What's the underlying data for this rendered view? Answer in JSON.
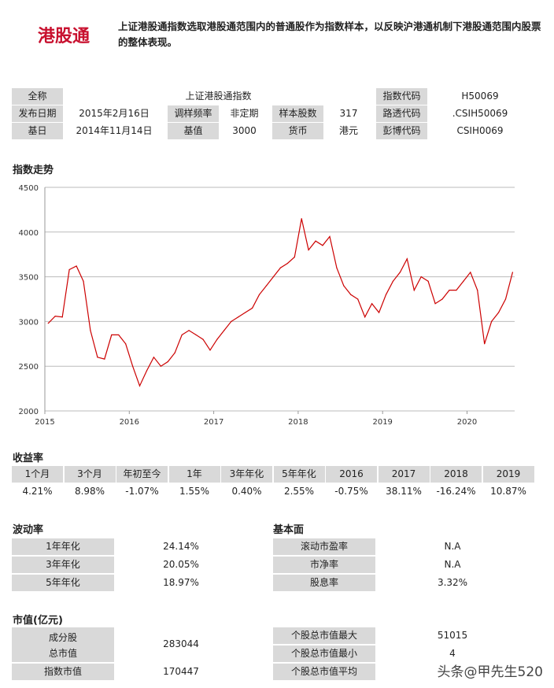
{
  "header": {
    "brand": "港股通",
    "description": "上证港股通指数选取港股通范围内的普通股作为指数样本，以反映沪港通机制下港股通范围内股票的整体表现。"
  },
  "info": {
    "full_name_label": "全称",
    "full_name": "上证港股通指数",
    "index_code_label": "指数代码",
    "index_code": "H50069",
    "release_date_label": "发布日期",
    "release_date": "2015年2月16日",
    "rebalance_label": "调样频率",
    "rebalance": "非定期",
    "sample_count_label": "样本股数",
    "sample_count": "317",
    "reuters_label": "路透代码",
    "reuters": ".CSIH50069",
    "base_date_label": "基日",
    "base_date": "2014年11月14日",
    "base_value_label": "基值",
    "base_value": "3000",
    "currency_label": "货币",
    "currency": "港元",
    "bloomberg_label": "彭博代码",
    "bloomberg": "CSIH0069"
  },
  "chart_title": "指数走势",
  "chart_data": {
    "type": "line",
    "ylim": [
      2000,
      4500
    ],
    "yticks": [
      "4500",
      "4000",
      "3500",
      "3000",
      "2500",
      "2000"
    ],
    "xticks": [
      "2015",
      "2016",
      "2017",
      "2018",
      "2019",
      "2020"
    ],
    "grid": true,
    "color": "#cc0000",
    "x": [
      "2015-01",
      "2015-02",
      "2015-03",
      "2015-04",
      "2015-05",
      "2015-06",
      "2015-07",
      "2015-08",
      "2015-09",
      "2015-10",
      "2015-11",
      "2015-12",
      "2016-01",
      "2016-02",
      "2016-03",
      "2016-04",
      "2016-05",
      "2016-06",
      "2016-07",
      "2016-08",
      "2016-09",
      "2016-10",
      "2016-11",
      "2016-12",
      "2017-01",
      "2017-02",
      "2017-03",
      "2017-04",
      "2017-05",
      "2017-06",
      "2017-07",
      "2017-08",
      "2017-09",
      "2017-10",
      "2017-11",
      "2017-12",
      "2018-01",
      "2018-02",
      "2018-03",
      "2018-04",
      "2018-05",
      "2018-06",
      "2018-07",
      "2018-08",
      "2018-09",
      "2018-10",
      "2018-11",
      "2018-12",
      "2019-01",
      "2019-02",
      "2019-03",
      "2019-04",
      "2019-05",
      "2019-06",
      "2019-07",
      "2019-08",
      "2019-09",
      "2019-10",
      "2019-11",
      "2019-12",
      "2020-01",
      "2020-02",
      "2020-03",
      "2020-04",
      "2020-05",
      "2020-06",
      "2020-07"
    ],
    "values": [
      2980,
      3060,
      3050,
      3580,
      3620,
      3450,
      2900,
      2600,
      2580,
      2850,
      2850,
      2750,
      2500,
      2280,
      2450,
      2600,
      2500,
      2550,
      2650,
      2850,
      2900,
      2850,
      2800,
      2680,
      2800,
      2900,
      3000,
      3050,
      3100,
      3150,
      3300,
      3400,
      3500,
      3600,
      3650,
      3720,
      4150,
      3800,
      3900,
      3850,
      3950,
      3600,
      3400,
      3300,
      3250,
      3050,
      3200,
      3100,
      3300,
      3450,
      3550,
      3700,
      3350,
      3500,
      3450,
      3200,
      3250,
      3350,
      3350,
      3450,
      3550,
      3350,
      2750,
      3000,
      3100,
      3250,
      3550
    ]
  },
  "returns": {
    "title": "收益率",
    "headers": [
      "1个月",
      "3个月",
      "年初至今",
      "1年",
      "3年年化",
      "5年年化",
      "2016",
      "2017",
      "2018",
      "2019"
    ],
    "values": [
      "4.21%",
      "8.98%",
      "-1.07%",
      "1.55%",
      "0.40%",
      "2.55%",
      "-0.75%",
      "38.11%",
      "-16.24%",
      "10.87%"
    ]
  },
  "volatility": {
    "title": "波动率",
    "rows": [
      {
        "label": "1年年化",
        "value": "24.14%"
      },
      {
        "label": "3年年化",
        "value": "20.05%"
      },
      {
        "label": "5年年化",
        "value": "18.97%"
      }
    ]
  },
  "fundamentals": {
    "title": "基本面",
    "rows": [
      {
        "label": "滚动市盈率",
        "value": "N.A"
      },
      {
        "label": "市净率",
        "value": "N.A"
      },
      {
        "label": "股息率",
        "value": "3.32%"
      }
    ]
  },
  "market_cap": {
    "title": "市值(亿元)",
    "constituent_label_1": "成分股",
    "constituent_label_2": "总市值",
    "constituent_value": "283044",
    "index_cap_label": "指数市值",
    "index_cap_value": "170447",
    "rows": [
      {
        "label": "个股总市值最大",
        "value": "51015"
      },
      {
        "label": "个股总市值最小",
        "value": "4"
      },
      {
        "label": "个股总市值平均",
        "value": ""
      }
    ]
  },
  "watermark": "头条@甲先生520"
}
